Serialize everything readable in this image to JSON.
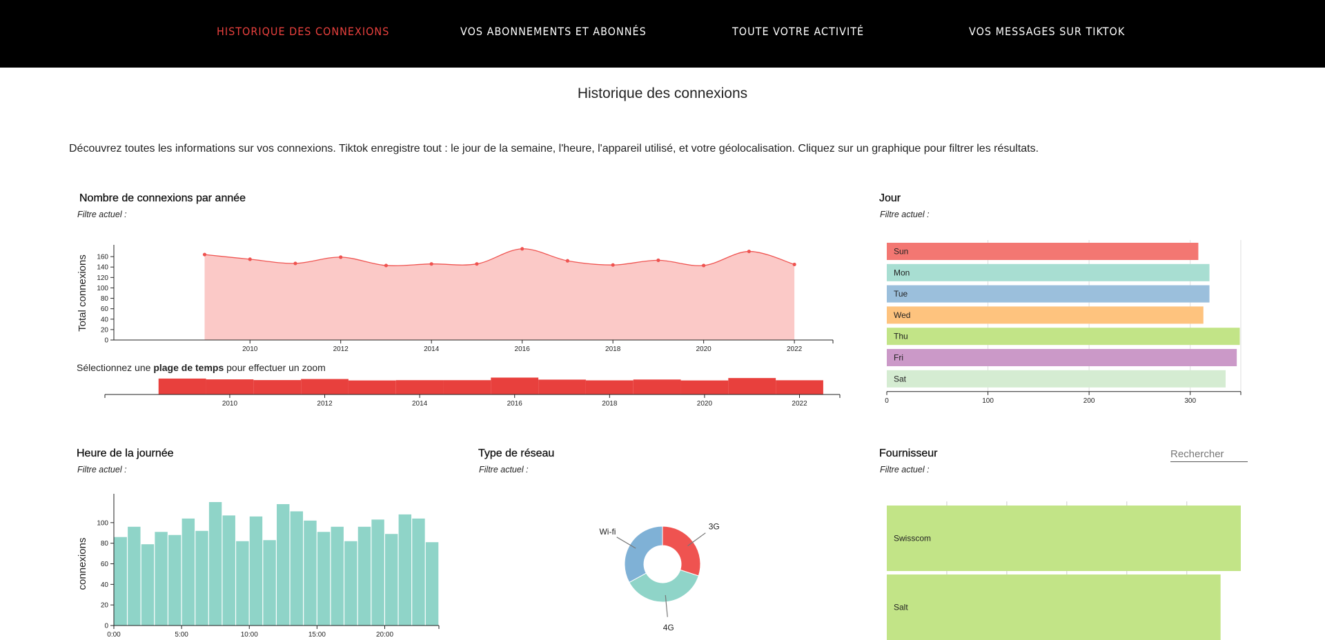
{
  "nav": {
    "items": [
      {
        "label": "HISTORIQUE DES CONNEXIONS",
        "active": true
      },
      {
        "label": "VOS ABONNEMENTS ET ABONNÉS",
        "active": false
      },
      {
        "label": "TOUTE VOTRE ACTIVITÉ",
        "active": false
      },
      {
        "label": "VOS MESSAGES SUR TIKTOK",
        "active": false
      }
    ]
  },
  "page": {
    "title": "Historique des connexions",
    "intro": "Découvrez toutes les informations sur vos connexions. Tiktok enregistre tout : le jour de la semaine, l'heure, l'appareil utilisé, et votre géolocalisation. Cliquez sur un graphique pour filtrer les résultats."
  },
  "panels": {
    "year": {
      "title": "Nombre de connexions par année",
      "filter": "Filtre actuel :",
      "ylabel": "Total connexions"
    },
    "zoom": {
      "prefix": "Sélectionnez une ",
      "bold": "plage de temps",
      "suffix": " pour effectuer un zoom"
    },
    "day": {
      "title": "Jour",
      "filter": "Filtre actuel :"
    },
    "hour": {
      "title": "Heure de la journée",
      "filter": "Filtre actuel :",
      "ylabel": "connexions"
    },
    "network": {
      "title": "Type de réseau",
      "filter": "Filtre actuel :"
    },
    "provider": {
      "title": "Fournisseur",
      "filter": "Filtre actuel :",
      "search_placeholder": "Rechercher"
    }
  },
  "colors": {
    "accent_red": "#e8403d",
    "year_line": "#ef5350",
    "year_area": "#fbc9c7",
    "hour_bars": "#8fd4c8",
    "provider_bars": "#c2e487"
  },
  "chart_data": [
    {
      "id": "year",
      "type": "area",
      "x": [
        2009,
        2010,
        2011,
        2012,
        2013,
        2014,
        2015,
        2016,
        2017,
        2018,
        2019,
        2020,
        2021,
        2022
      ],
      "values": [
        164,
        155,
        147,
        159,
        143,
        146,
        146,
        175,
        152,
        144,
        153,
        143,
        170,
        145
      ],
      "tick_labels": [
        "0",
        "20",
        "40",
        "60",
        "80",
        "100",
        "120",
        "140",
        "160"
      ],
      "x_ticks": [
        2010,
        2012,
        2014,
        2016,
        2018,
        2020,
        2022
      ],
      "ylim": [
        0,
        180
      ],
      "ylabel": "Total connexions"
    },
    {
      "id": "year-brush",
      "type": "bar",
      "x": [
        2009,
        2010,
        2011,
        2012,
        2013,
        2014,
        2015,
        2016,
        2017,
        2018,
        2019,
        2020,
        2021,
        2022
      ],
      "values": [
        164,
        155,
        147,
        159,
        143,
        146,
        146,
        175,
        152,
        144,
        153,
        143,
        170,
        145
      ],
      "x_ticks": [
        2010,
        2012,
        2014,
        2016,
        2018,
        2020,
        2022
      ]
    },
    {
      "id": "day",
      "type": "bar",
      "orientation": "horizontal",
      "categories": [
        "Sun",
        "Mon",
        "Tue",
        "Wed",
        "Thu",
        "Fri",
        "Sat"
      ],
      "values": [
        308,
        319,
        319,
        313,
        349,
        346,
        335
      ],
      "colors": [
        "#f37772",
        "#a8ded2",
        "#9bbfdc",
        "#fec37e",
        "#c2e487",
        "#cb99c8",
        "#d5ecd2"
      ],
      "x_ticks": [
        0,
        100,
        200,
        300
      ],
      "xlim": [
        0,
        350
      ]
    },
    {
      "id": "hour",
      "type": "bar",
      "categories": [
        "0",
        "1",
        "2",
        "3",
        "4",
        "5",
        "6",
        "7",
        "8",
        "9",
        "10",
        "11",
        "12",
        "13",
        "14",
        "15",
        "16",
        "17",
        "18",
        "19",
        "20",
        "21",
        "22",
        "23"
      ],
      "values": [
        86,
        96,
        79,
        91,
        88,
        104,
        92,
        120,
        107,
        82,
        106,
        83,
        118,
        111,
        102,
        91,
        96,
        82,
        96,
        103,
        89,
        108,
        104,
        81
      ],
      "tick_labels": [
        "0",
        "20",
        "40",
        "60",
        "80",
        "100"
      ],
      "x_tick_labels": [
        "0:00",
        "5:00",
        "10:00",
        "15:00",
        "20:00"
      ],
      "ylim": [
        0,
        120
      ],
      "ylabel": "connexions"
    },
    {
      "id": "network",
      "type": "pie",
      "labels": [
        "3G",
        "4G",
        "Wi-fi"
      ],
      "values": [
        30,
        37,
        33
      ],
      "colors": [
        "#ef5350",
        "#8fd4c8",
        "#7fb1d6"
      ]
    },
    {
      "id": "provider",
      "type": "bar",
      "orientation": "horizontal",
      "categories": [
        "Swisscom",
        "Salt"
      ],
      "values": [
        350,
        330
      ],
      "xlim": [
        0,
        350
      ]
    }
  ]
}
